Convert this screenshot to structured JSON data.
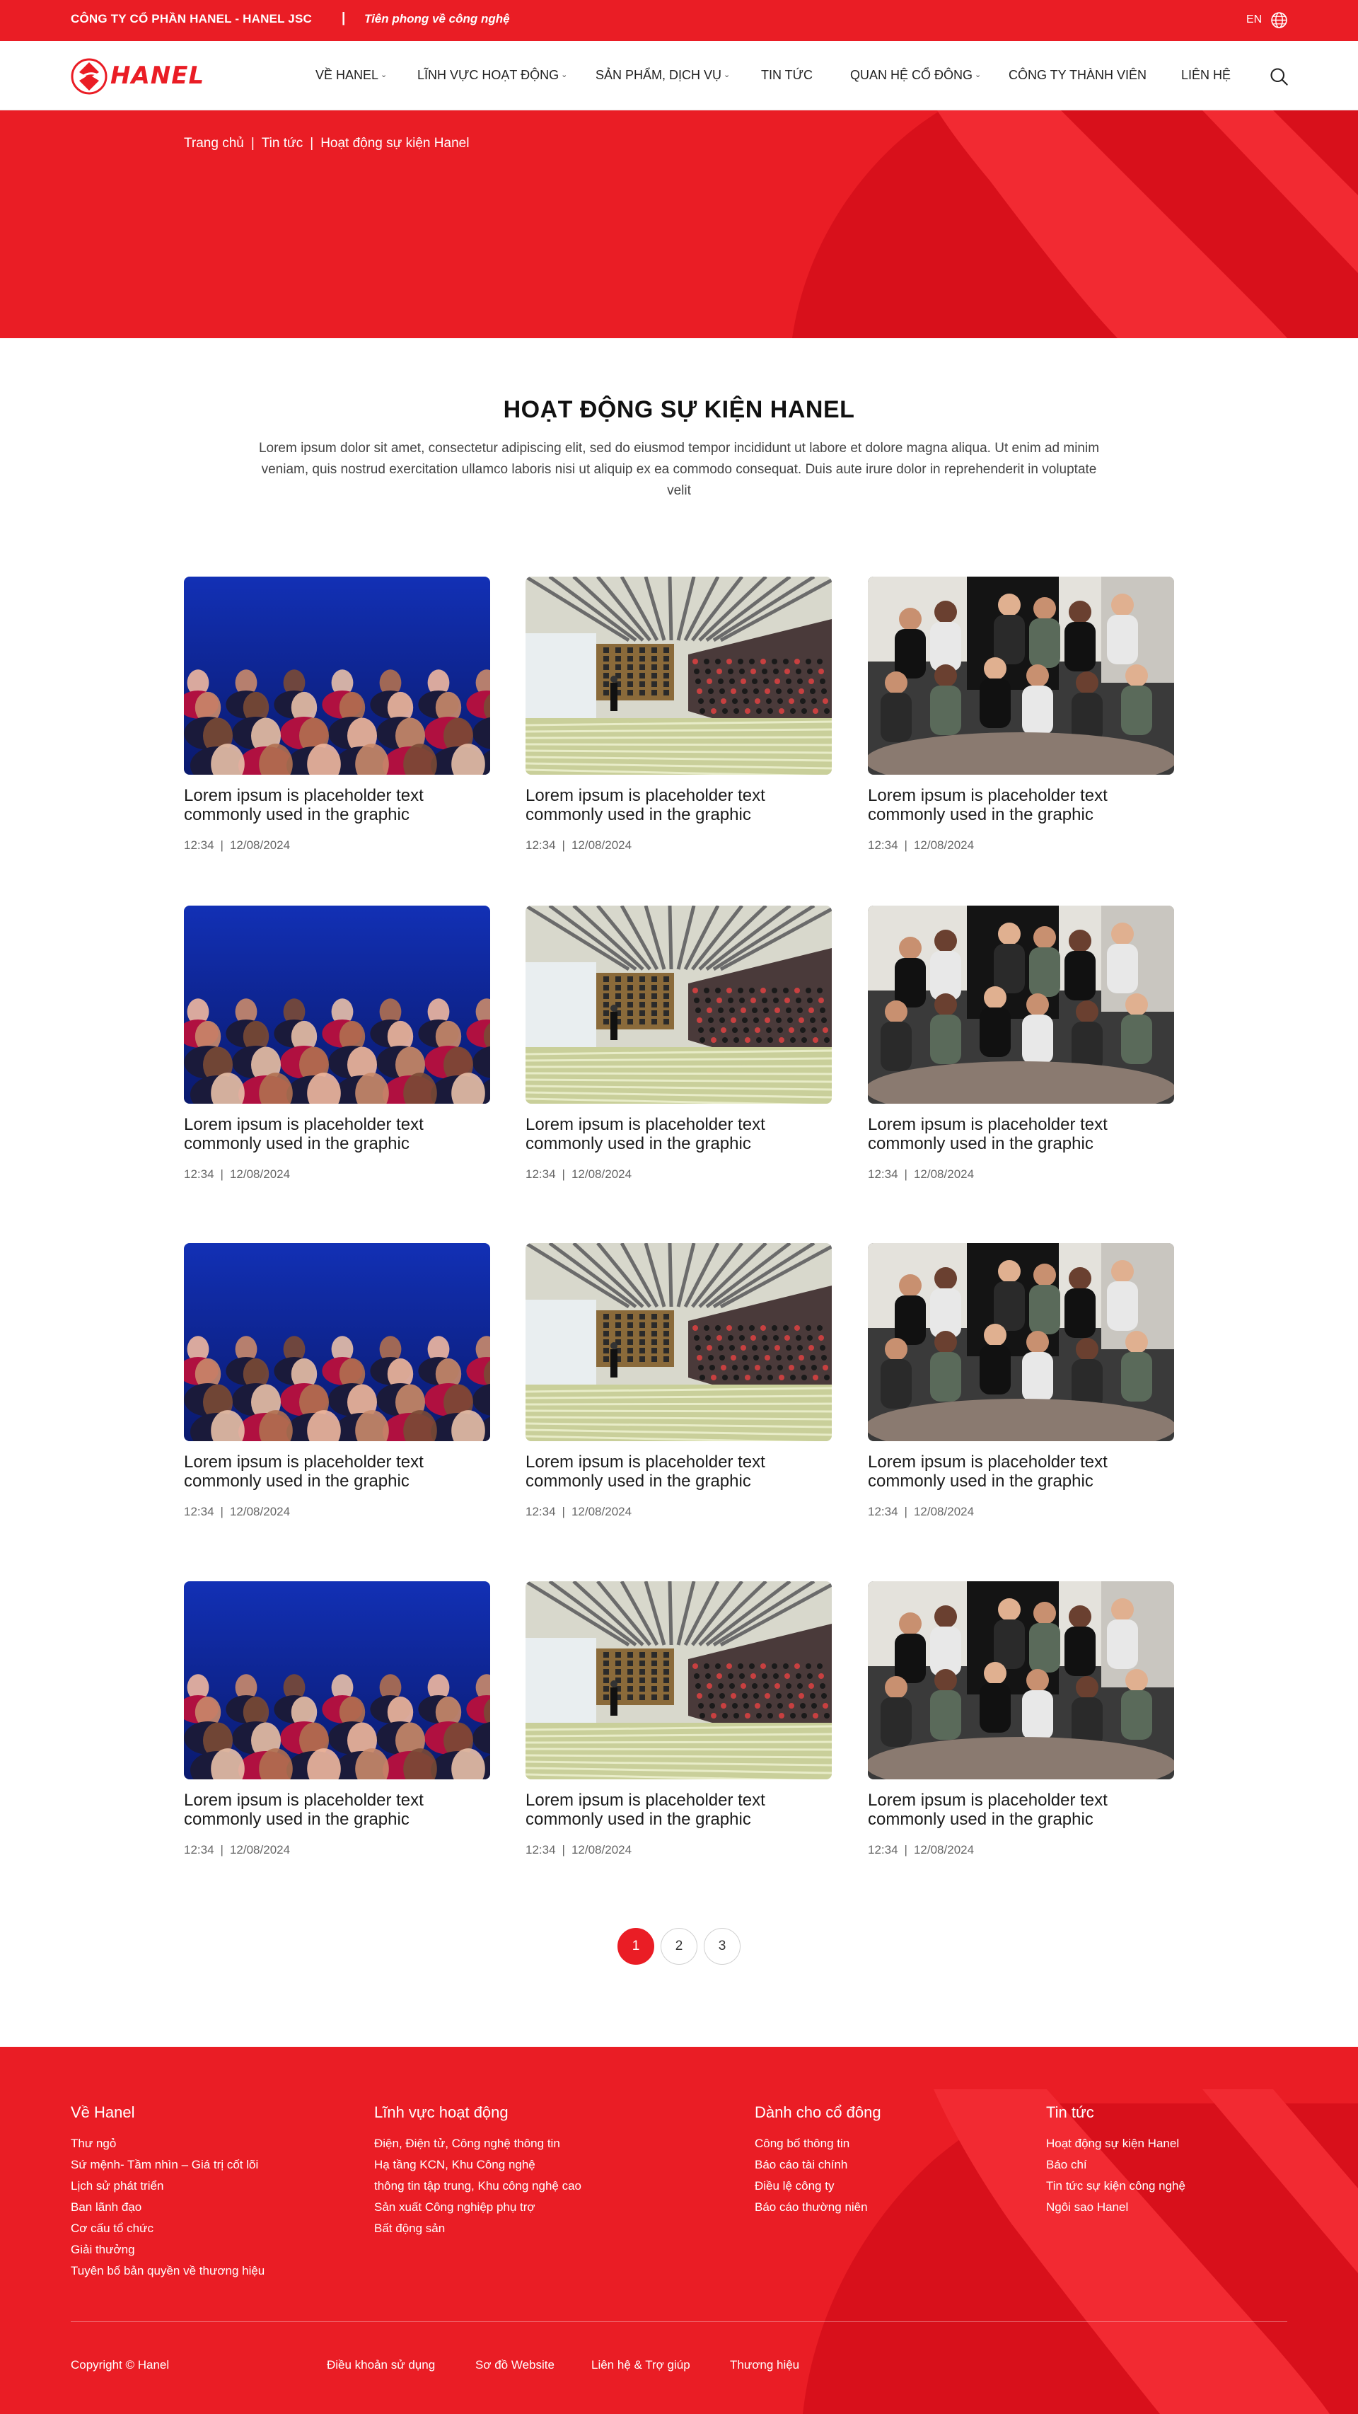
{
  "topbar": {
    "company": "CÔNG TY CỔ PHẦN HANEL - HANEL JSC",
    "separator": "|",
    "slogan": "Tiên phong về công nghệ",
    "lang": "EN",
    "globe_icon": "globe-icon"
  },
  "nav": {
    "logo_text": "HANEL",
    "items": [
      {
        "label": "VỀ HANEL",
        "dropdown": true
      },
      {
        "label": "LĨNH VỰC HOẠT ĐỘNG",
        "dropdown": true
      },
      {
        "label": "SẢN PHẨM, DỊCH VỤ",
        "dropdown": true
      },
      {
        "label": "TIN TỨC",
        "dropdown": false
      },
      {
        "label": "QUAN HỆ CỔ ĐÔNG",
        "dropdown": true
      },
      {
        "label": "CÔNG TY THÀNH VIÊN",
        "dropdown": false
      },
      {
        "label": "LIÊN HỆ",
        "dropdown": false
      }
    ],
    "chevron": "⌄",
    "search_icon": "search-icon"
  },
  "breadcrumb": {
    "items": [
      "Trang chủ",
      "Tin tức",
      "Hoạt động sự kiện Hanel"
    ],
    "separator": "|"
  },
  "intro": {
    "title": "HOẠT ĐỘNG SỰ KIỆN HANEL",
    "description": "Lorem ipsum dolor sit amet, consectetur adipiscing elit, sed do eiusmod tempor incididunt ut labore et dolore magna aliqua. Ut enim ad minim veniam, quis nostrud exercitation ullamco laboris nisi ut aliquip ex ea commodo consequat. Duis aute irure dolor in reprehenderit in voluptate velit"
  },
  "articles": [
    {
      "title": "Lorem ipsum is placeholder text commonly used in the graphic",
      "time": "12:34",
      "date": "12/08/2024",
      "image": "audience-photo"
    },
    {
      "title": "Lorem ipsum is placeholder text commonly used in the graphic",
      "time": "12:34",
      "date": "12/08/2024",
      "image": "lecture-hall-photo"
    },
    {
      "title": "Lorem ipsum is placeholder text commonly used in the graphic",
      "time": "12:34",
      "date": "12/08/2024",
      "image": "group-meeting-photo"
    },
    {
      "title": "Lorem ipsum is placeholder text commonly used in the graphic",
      "time": "12:34",
      "date": "12/08/2024",
      "image": "audience-photo"
    },
    {
      "title": "Lorem ipsum is placeholder text commonly used in the graphic",
      "time": "12:34",
      "date": "12/08/2024",
      "image": "lecture-hall-photo"
    },
    {
      "title": "Lorem ipsum is placeholder text commonly used in the graphic",
      "time": "12:34",
      "date": "12/08/2024",
      "image": "group-meeting-photo"
    },
    {
      "title": "Lorem ipsum is placeholder text commonly used in the graphic",
      "time": "12:34",
      "date": "12/08/2024",
      "image": "audience-photo"
    },
    {
      "title": "Lorem ipsum is placeholder text commonly used in the graphic",
      "time": "12:34",
      "date": "12/08/2024",
      "image": "lecture-hall-photo"
    },
    {
      "title": "Lorem ipsum is placeholder text commonly used in the graphic",
      "time": "12:34",
      "date": "12/08/2024",
      "image": "group-meeting-photo"
    },
    {
      "title": "Lorem ipsum is placeholder text commonly used in the graphic",
      "time": "12:34",
      "date": "12/08/2024",
      "image": "audience-photo"
    },
    {
      "title": "Lorem ipsum is placeholder text commonly used in the graphic",
      "time": "12:34",
      "date": "12/08/2024",
      "image": "lecture-hall-photo"
    },
    {
      "title": "Lorem ipsum is placeholder text commonly used in the graphic",
      "time": "12:34",
      "date": "12/08/2024",
      "image": "group-meeting-photo"
    }
  ],
  "meta_separator": "|",
  "pagination": {
    "pages": [
      "1",
      "2",
      "3"
    ],
    "current": "1"
  },
  "footer": {
    "columns": [
      {
        "heading": "Về Hanel",
        "links": [
          "Thư ngỏ",
          "Sứ mệnh- Tầm nhìn – Giá trị cốt lõi",
          "Lịch sử phát triển",
          "Ban lãnh đạo",
          "Cơ cấu tổ chức",
          "Giải thưởng",
          "Tuyên bố bản quyền về thương hiệu"
        ]
      },
      {
        "heading": "Lĩnh vực hoạt động",
        "links": [
          "Điện, Điện tử, Công nghệ thông tin",
          "Hạ tầng KCN, Khu Công nghệ",
          "thông tin tập trung, Khu công nghệ cao",
          "Sản xuất Công nghiệp phụ trợ",
          "Bất động sản"
        ]
      },
      {
        "heading": "Dành cho cổ đông",
        "links": [
          "Công bố thông tin",
          "Báo cáo tài chính",
          "Điều lệ công ty",
          "Báo cáo thường niên"
        ]
      },
      {
        "heading": "Tin tức",
        "links": [
          "Hoạt động sự kiện Hanel",
          "Báo chí",
          "Tin tức sự kiện công nghệ",
          "Ngôi sao Hanel"
        ]
      }
    ],
    "copyright": "Copyright © Hanel",
    "bottom_links": [
      "Điều khoản sử dụng",
      "Sơ đồ Website",
      "Liên hệ & Trợ giúp",
      "Thương hiệu"
    ]
  },
  "colors": {
    "brand_red": "#ea1d25",
    "brand_dark_red": "#c8000e"
  }
}
